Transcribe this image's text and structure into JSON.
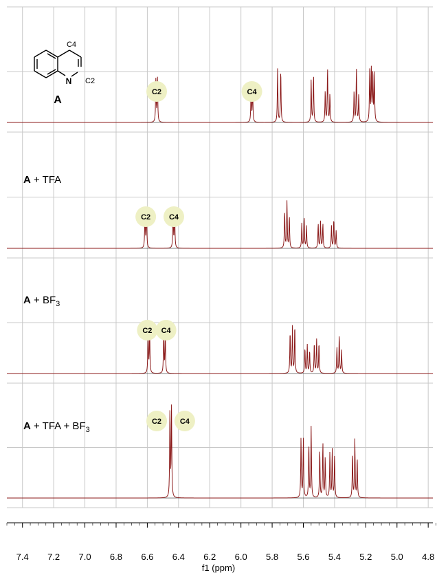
{
  "chart_data": {
    "type": "line",
    "xlabel": "f1 (ppm)",
    "xlim": [
      7.5,
      4.77
    ],
    "x_ticks": [
      "7.4",
      "7.2",
      "7.0",
      "6.8",
      "6.6",
      "6.4",
      "6.2",
      "6.0",
      "5.8",
      "5.6",
      "5.4",
      "5.2",
      "5.0",
      "4.8"
    ],
    "x_tick_values": [
      7.4,
      7.2,
      7.0,
      6.8,
      6.6,
      6.4,
      6.2,
      6.0,
      5.8,
      5.6,
      5.4,
      5.2,
      5.0,
      4.8
    ],
    "grid": true,
    "line_color": "#8b1a1a",
    "badge_color": "#eef0c4",
    "structure": {
      "label": "A",
      "atom_n": "N",
      "label_c4": "C4",
      "label_c2": "C2"
    },
    "panels": [
      {
        "name": "",
        "label_parts": [],
        "badges": [
          {
            "text": "C2",
            "ppm": 6.54
          },
          {
            "text": "C4",
            "ppm": 5.93
          }
        ],
        "peaks": [
          {
            "ppm": 6.545,
            "h": 0.78
          },
          {
            "ppm": 6.535,
            "h": 0.78
          },
          {
            "ppm": 5.935,
            "h": 0.62
          },
          {
            "ppm": 5.925,
            "h": 0.62
          },
          {
            "ppm": 5.765,
            "h": 0.95
          },
          {
            "ppm": 5.745,
            "h": 0.95
          },
          {
            "ppm": 5.55,
            "h": 0.75
          },
          {
            "ppm": 5.535,
            "h": 0.85
          },
          {
            "ppm": 5.46,
            "h": 0.55
          },
          {
            "ppm": 5.445,
            "h": 0.95
          },
          {
            "ppm": 5.43,
            "h": 0.5
          },
          {
            "ppm": 5.275,
            "h": 0.55
          },
          {
            "ppm": 5.26,
            "h": 0.95
          },
          {
            "ppm": 5.245,
            "h": 0.5
          },
          {
            "ppm": 5.175,
            "h": 0.9
          },
          {
            "ppm": 5.165,
            "h": 0.95
          },
          {
            "ppm": 5.155,
            "h": 0.9
          },
          {
            "ppm": 5.145,
            "h": 0.85
          }
        ]
      },
      {
        "name": "A + TFA",
        "label_parts": [
          "A",
          " + TFA"
        ],
        "badges": [
          {
            "text": "C2",
            "ppm": 6.61
          },
          {
            "text": "C4",
            "ppm": 6.43
          }
        ],
        "peaks": [
          {
            "ppm": 6.615,
            "h": 0.78
          },
          {
            "ppm": 6.605,
            "h": 0.78
          },
          {
            "ppm": 6.435,
            "h": 0.78
          },
          {
            "ppm": 6.425,
            "h": 0.78
          },
          {
            "ppm": 5.72,
            "h": 0.75
          },
          {
            "ppm": 5.705,
            "h": 0.95
          },
          {
            "ppm": 5.69,
            "h": 0.65
          },
          {
            "ppm": 5.61,
            "h": 0.5
          },
          {
            "ppm": 5.595,
            "h": 0.65
          },
          {
            "ppm": 5.58,
            "h": 0.45
          },
          {
            "ppm": 5.505,
            "h": 0.5
          },
          {
            "ppm": 5.49,
            "h": 0.55
          },
          {
            "ppm": 5.475,
            "h": 0.5
          },
          {
            "ppm": 5.42,
            "h": 0.45
          },
          {
            "ppm": 5.405,
            "h": 0.6
          },
          {
            "ppm": 5.39,
            "h": 0.35
          }
        ]
      },
      {
        "name": "A + BF3",
        "label_parts": [
          "A",
          " + BF",
          "3"
        ],
        "badges": [
          {
            "text": "C2",
            "ppm": 6.6
          },
          {
            "text": "C4",
            "ppm": 6.48
          }
        ],
        "peaks": [
          {
            "ppm": 6.595,
            "h": 0.82
          },
          {
            "ppm": 6.585,
            "h": 0.82
          },
          {
            "ppm": 6.495,
            "h": 0.78
          },
          {
            "ppm": 6.485,
            "h": 0.78
          },
          {
            "ppm": 5.685,
            "h": 0.82
          },
          {
            "ppm": 5.67,
            "h": 0.9
          },
          {
            "ppm": 5.655,
            "h": 0.95
          },
          {
            "ppm": 5.59,
            "h": 0.5
          },
          {
            "ppm": 5.575,
            "h": 0.55
          },
          {
            "ppm": 5.56,
            "h": 0.45
          },
          {
            "ppm": 5.53,
            "h": 0.6
          },
          {
            "ppm": 5.515,
            "h": 0.65
          },
          {
            "ppm": 5.5,
            "h": 0.6
          },
          {
            "ppm": 5.385,
            "h": 0.5
          },
          {
            "ppm": 5.37,
            "h": 0.75
          },
          {
            "ppm": 5.355,
            "h": 0.45
          }
        ]
      },
      {
        "name": "A + TFA + BF3",
        "label_parts": [
          "A",
          " + TFA + BF",
          "3"
        ],
        "badges": [
          {
            "text": "C2",
            "ppm": 6.54
          },
          {
            "text": "C4",
            "ppm": 6.36
          }
        ],
        "peaks": [
          {
            "ppm": 6.455,
            "h": 1.0
          },
          {
            "ppm": 6.445,
            "h": 1.0
          },
          {
            "ppm": 5.615,
            "h": 0.68
          },
          {
            "ppm": 5.6,
            "h": 0.68
          },
          {
            "ppm": 5.565,
            "h": 0.6
          },
          {
            "ppm": 5.55,
            "h": 0.8
          },
          {
            "ppm": 5.495,
            "h": 0.55
          },
          {
            "ppm": 5.475,
            "h": 0.62
          },
          {
            "ppm": 5.46,
            "h": 0.45
          },
          {
            "ppm": 5.43,
            "h": 0.52
          },
          {
            "ppm": 5.415,
            "h": 0.55
          },
          {
            "ppm": 5.4,
            "h": 0.48
          },
          {
            "ppm": 5.285,
            "h": 0.5
          },
          {
            "ppm": 5.27,
            "h": 0.65
          },
          {
            "ppm": 5.255,
            "h": 0.45
          }
        ]
      }
    ]
  }
}
